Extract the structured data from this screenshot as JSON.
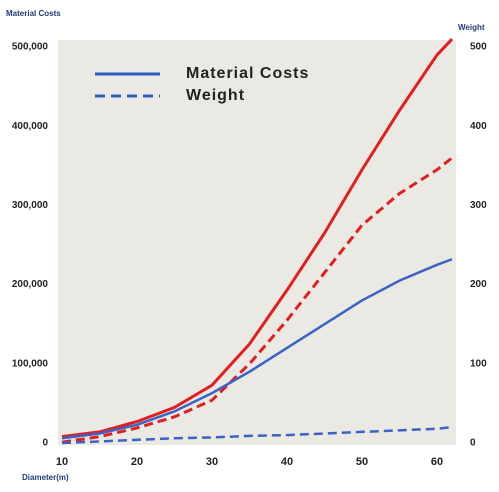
{
  "chart_data": {
    "type": "line",
    "y_label": "Material Costs",
    "y2_label": "Weight",
    "x_label": "Diameter(m)",
    "x": [
      10,
      15,
      20,
      25,
      30,
      35,
      40,
      45,
      50,
      55,
      60,
      62
    ],
    "xlim": [
      10,
      62
    ],
    "xticks": [
      10,
      20,
      30,
      40,
      50,
      60
    ],
    "ylim": [
      0,
      500000
    ],
    "yticks": [
      0,
      {
        "value": 100000,
        "label": "100,000"
      },
      {
        "value": 200000,
        "label": "200,000"
      },
      {
        "value": 300000,
        "label": "300,000"
      },
      {
        "value": 400000,
        "label": "400,000"
      },
      {
        "value": 500000,
        "label": "500,000"
      }
    ],
    "y2lim": [
      0,
      500
    ],
    "y2ticks": [
      0,
      100,
      200,
      300,
      400,
      500
    ],
    "legend": [
      {
        "label": "Material Costs",
        "color": "#2a5bc4",
        "dash": "solid"
      },
      {
        "label": "Weight",
        "color": "#2a5bc4",
        "dash": "dashed"
      }
    ],
    "series": [
      {
        "color": "#e02020",
        "dash": "solid",
        "values": [
          8000,
          14000,
          27000,
          45000,
          73000,
          125000,
          193000,
          265000,
          345000,
          420000,
          490000,
          510000
        ]
      },
      {
        "color": "#e02020",
        "dash": "dashed",
        "axis": "y2",
        "values": [
          1,
          8,
          19,
          33,
          54,
          100,
          155,
          215,
          275,
          315,
          345,
          360
        ]
      },
      {
        "color": "#3a62c8",
        "dash": "solid",
        "values": [
          6000,
          12000,
          23000,
          40000,
          63000,
          90000,
          120000,
          150000,
          180000,
          205000,
          225000,
          232000
        ]
      },
      {
        "color": "#3a62c8",
        "dash": "dashed",
        "axis": "y2",
        "values": [
          0,
          2,
          4,
          6,
          7,
          9,
          10,
          12,
          14,
          16,
          18,
          20
        ]
      }
    ]
  }
}
